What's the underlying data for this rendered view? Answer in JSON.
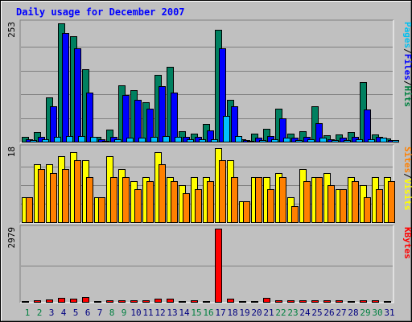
{
  "chart_data": {
    "type": "bar",
    "title": "Daily usage for December 2007",
    "x": [
      "1",
      "2",
      "3",
      "4",
      "5",
      "6",
      "7",
      "8",
      "9",
      "10",
      "11",
      "12",
      "13",
      "14",
      "15",
      "16",
      "17",
      "18",
      "19",
      "20",
      "21",
      "22",
      "23",
      "24",
      "25",
      "26",
      "27",
      "28",
      "29",
      "30",
      "31"
    ],
    "weekend_days": [
      "1",
      "2",
      "8",
      "9",
      "15",
      "16",
      "22",
      "23",
      "29",
      "30"
    ],
    "panels": [
      {
        "id": "hits",
        "scale_label": "253",
        "ylim": [
          0,
          253
        ],
        "legend": [
          {
            "label": "Pages",
            "color": "#00c0f0"
          },
          {
            "label": "/",
            "color": "#000000"
          },
          {
            "label": "Files",
            "color": "#0000ff"
          },
          {
            "label": "/",
            "color": "#000000"
          },
          {
            "label": "Hits",
            "color": "#008040"
          }
        ],
        "series": [
          {
            "name": "Hits",
            "color": "#008060",
            "offset": 0,
            "values": [
              11,
              20,
              95,
              253,
              225,
              155,
              10,
              25,
              120,
              110,
              85,
              142,
              160,
              22,
              18,
              38,
              240,
              90,
              6,
              18,
              28,
              70,
              18,
              22,
              75,
              14,
              16,
              20,
              128,
              16,
              7
            ]
          },
          {
            "name": "Files",
            "color": "#0000ff",
            "offset": 5,
            "values": [
              5,
              10,
              75,
              233,
              200,
              105,
              6,
              10,
              100,
              90,
              70,
              118,
              105,
              10,
              10,
              24,
              200,
              75,
              3,
              8,
              12,
              50,
              8,
              10,
              40,
              6,
              8,
              10,
              68,
              10,
              4
            ]
          },
          {
            "name": "Pages",
            "color": "#00c0ff",
            "offset": 10,
            "values": [
              3,
              6,
              10,
              12,
              12,
              10,
              2,
              5,
              8,
              8,
              10,
              12,
              10,
              6,
              5,
              6,
              55,
              12,
              2,
              4,
              6,
              8,
              4,
              6,
              8,
              4,
              4,
              6,
              6,
              8,
              3
            ]
          }
        ]
      },
      {
        "id": "visits",
        "scale_label": "18",
        "ylim": [
          0,
          18
        ],
        "legend": [
          {
            "label": "Sites",
            "color": "#ff8000"
          },
          {
            "label": "/",
            "color": "#000000"
          },
          {
            "label": "Visits",
            "color": "#ffff00"
          }
        ],
        "series": [
          {
            "name": "Visits",
            "color": "#ffff00",
            "offset": 0,
            "values": [
              6,
              14,
              14,
              16,
              17,
              15,
              6,
              16,
              13,
              10,
              11,
              17,
              11,
              9,
              11,
              11,
              18,
              15,
              5,
              11,
              11,
              12,
              6,
              13,
              11,
              12,
              8,
              11,
              9,
              11,
              11
            ]
          },
          {
            "name": "Sites",
            "color": "#ff8000",
            "offset": 5,
            "values": [
              6,
              13,
              12,
              13,
              15,
              11,
              6,
              11,
              11,
              8,
              10,
              14,
              10,
              7,
              8,
              10,
              15,
              11,
              5,
              11,
              8,
              11,
              4,
              10,
              11,
              9,
              8,
              10,
              6,
              8,
              10
            ]
          }
        ]
      },
      {
        "id": "kbytes",
        "scale_label": "2979",
        "ylim": [
          0,
          2979
        ],
        "legend": [
          {
            "label": "KBytes",
            "color": "#ff0000"
          }
        ],
        "series": [
          {
            "name": "KBytes",
            "color": "#ff0000",
            "offset": 0,
            "values": [
              40,
              60,
              110,
              150,
              120,
              200,
              30,
              80,
              80,
              70,
              80,
              120,
              120,
              40,
              60,
              40,
              2979,
              120,
              20,
              30,
              150,
              50,
              60,
              60,
              50,
              60,
              50,
              40,
              60,
              50,
              20
            ]
          }
        ]
      }
    ]
  },
  "colors": {
    "background": "#c0c0c0",
    "title": "#0000ff",
    "grid": "#808080",
    "weekday_label": "#000080",
    "weekend_label": "#008040"
  }
}
